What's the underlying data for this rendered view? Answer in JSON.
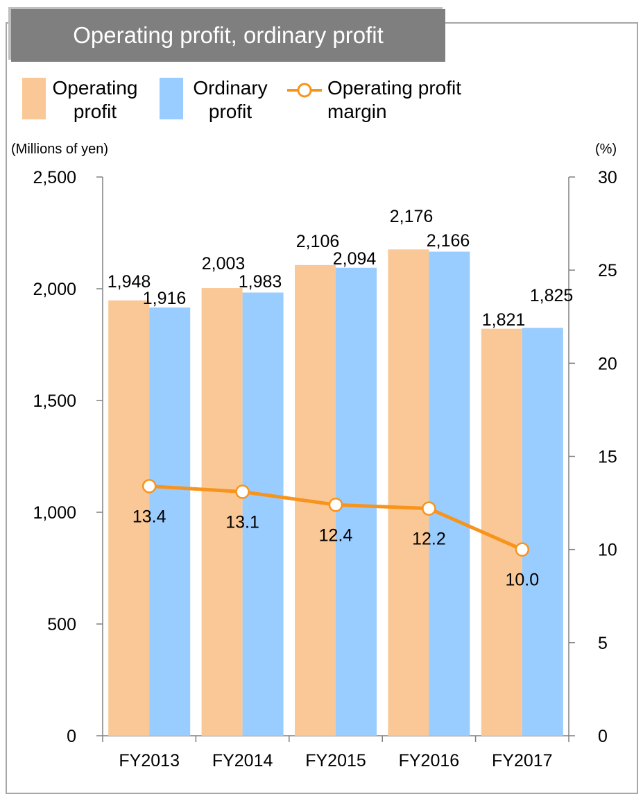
{
  "title": "Operating profit, ordinary profit",
  "colors": {
    "operating": "#fac896",
    "ordinary": "#99ccff",
    "margin": "#f7941d",
    "frame": "#a6a6a6",
    "title_bg": "#7f7f7f"
  },
  "legend": {
    "operating_line1": "Operating",
    "operating_line2": "profit",
    "ordinary_line1": "Ordinary",
    "ordinary_line2": "profit",
    "margin_line1": "Operating profit",
    "margin_line2": "margin"
  },
  "chart_data": {
    "type": "bar",
    "categories": [
      "FY2013",
      "FY2014",
      "FY2015",
      "FY2016",
      "FY2017"
    ],
    "series": [
      {
        "name": "Operating profit",
        "type": "bar",
        "axis": "left",
        "values": [
          1948,
          2003,
          2106,
          2176,
          1821
        ],
        "labels": [
          "1,948",
          "2,003",
          "2,106",
          "2,176",
          "1,821"
        ]
      },
      {
        "name": "Ordinary profit",
        "type": "bar",
        "axis": "left",
        "values": [
          1916,
          1983,
          2094,
          2166,
          1825
        ],
        "labels": [
          "1,916",
          "1,983",
          "2,094",
          "2,166",
          "1,825"
        ]
      },
      {
        "name": "Operating profit margin",
        "type": "line",
        "axis": "right",
        "values": [
          13.4,
          13.1,
          12.4,
          12.2,
          10.0
        ],
        "labels": [
          "13.4",
          "13.1",
          "12.4",
          "12.2",
          "10.0"
        ]
      }
    ],
    "ylabel_left": "(Millions of yen)",
    "ylabel_right": "(%)",
    "ylim_left": [
      0,
      2500
    ],
    "ylim_right": [
      0,
      30
    ],
    "yticks_left": [
      0,
      500,
      1000,
      1500,
      2000,
      2500
    ],
    "yticks_left_labels": [
      "0",
      "500",
      "1,000",
      "1,500",
      "2,000",
      "2,500"
    ],
    "yticks_right": [
      0,
      5,
      10,
      15,
      20,
      25,
      30
    ],
    "yticks_right_labels": [
      "0",
      "5",
      "10",
      "15",
      "20",
      "25",
      "30"
    ],
    "grid": false,
    "legend_position": "top"
  }
}
